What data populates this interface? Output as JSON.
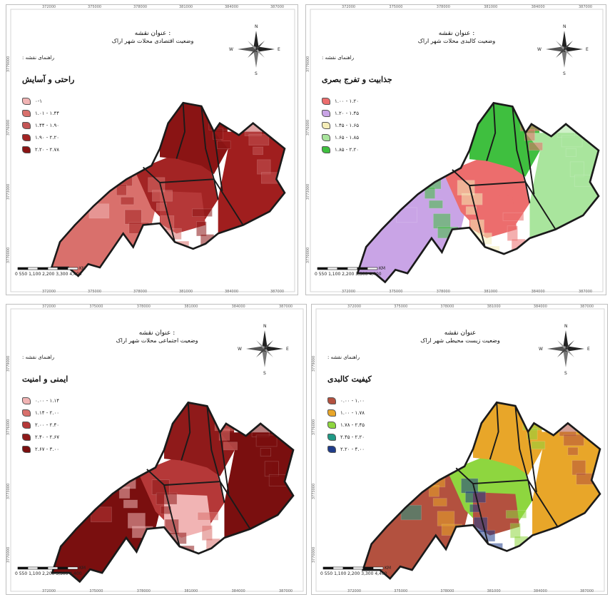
{
  "panels": [
    {
      "id": "economic",
      "title_label": "عنوان نقشه :",
      "title": "وضعیت اقتصادی محلات شهر اراک",
      "guide": "راهنمای نقشه :",
      "legend_title": "راحتی و آسایش",
      "legend": [
        {
          "range": "۰-۱",
          "color": "#f1b4b4"
        },
        {
          "range": "۱.۰۱ - ۱.۴۴",
          "color": "#d9706c"
        },
        {
          "range": "۱.۴۴ - ۱.۹۰",
          "color": "#c45555"
        },
        {
          "range": "۱.۹۰ - ۲.۲۰",
          "color": "#a32424"
        },
        {
          "range": "۲.۲۰ - ۲.۷۸",
          "color": "#8a1414"
        }
      ],
      "region_colors": {
        "west": "#d9706c",
        "center": "#a32424",
        "north": "#8a1414",
        "east": "#a01e1e",
        "central_core": "#b53838"
      }
    },
    {
      "id": "physical",
      "title_label": "عنوان نقشه :",
      "title": "وضعیت کالبدی محلات شهر اراک",
      "guide": "راهنمای نقشه :",
      "legend_title": "جذابیت و تفرج بصری",
      "legend": [
        {
          "range": "۱.۰۰ - ۱.۲۰",
          "color": "#ec6d6d"
        },
        {
          "range": "۱.۲۰ - ۱.۴۵",
          "color": "#c9a4e6"
        },
        {
          "range": "۱.۴۵ - ۱.۶۵",
          "color": "#f5edb8"
        },
        {
          "range": "۱.۶۵ - ۱.۸۵",
          "color": "#a9e59d"
        },
        {
          "range": "۱.۸۵ - ۲.۲۰",
          "color": "#3fbf3f"
        }
      ],
      "region_colors": {
        "west": "#c9a4e6",
        "center": "#ec6d6d",
        "north": "#3fbf3f",
        "east": "#a9e59d",
        "central_core": "#ec6d6d"
      }
    },
    {
      "id": "social",
      "title_label": "عنوان نقشه :",
      "title": "وضعیت اجتماعی محلات شهر اراک",
      "guide": "راهنمای نقشه :",
      "legend_title": "ایمنی و امنیت",
      "legend": [
        {
          "range": "۰.۰۰ - ۱.۱۴",
          "color": "#f1b4b4"
        },
        {
          "range": "۱.۱۴ - ۲.۰۰",
          "color": "#d9706c"
        },
        {
          "range": "۲.۰۰ - ۲.۴۰",
          "color": "#b53838"
        },
        {
          "range": "۲.۴۰ - ۲.۶۷",
          "color": "#8f1a1a"
        },
        {
          "range": "۲.۶۷ - ۳.۰۰",
          "color": "#7a0f0f"
        }
      ],
      "region_colors": {
        "west": "#7a0f0f",
        "center": "#b53838",
        "north": "#8f1a1a",
        "east": "#7a0f0f",
        "central_core": "#f1b4b4"
      }
    },
    {
      "id": "environment",
      "title_label": "عنوان نقشه",
      "title": "وضعیت زیست محیطی شهر اراک",
      "guide": "راهنمای نقشه :",
      "legend_title": "کیفیت کالبدی",
      "legend": [
        {
          "range": "۰.۰۰ - ۱.۰۰",
          "color": "#b3513f"
        },
        {
          "range": "۱.۰۰ - ۱.۷۸",
          "color": "#e8a629"
        },
        {
          "range": "۱.۷۸ - ۲.۴۵",
          "color": "#8ed63f"
        },
        {
          "range": "۲.۴۵ - ۲.۲۰",
          "color": "#1f9a86"
        },
        {
          "range": "۲.۲۰ - ۴.۰۰",
          "color": "#1f3c8a"
        }
      ],
      "region_colors": {
        "west": "#b3513f",
        "center": "#8ed63f",
        "north": "#e8a629",
        "east": "#e8a629",
        "central_core": "#b3513f"
      }
    }
  ],
  "compass": {
    "n": "N",
    "s": "S",
    "e": "E",
    "w": "W"
  },
  "scale": {
    "labels": "0  550 1,100   2,200   3,300   4,400",
    "unit": "KM"
  },
  "x_ticks": [
    "372000",
    "375000",
    "378000",
    "381000",
    "384000",
    "387000"
  ],
  "y_ticks": [
    "3779000",
    "3776000",
    "3773000",
    "3770000"
  ],
  "colors": {
    "outline": "#1a1a1a",
    "frame": "#bfbfbf"
  }
}
